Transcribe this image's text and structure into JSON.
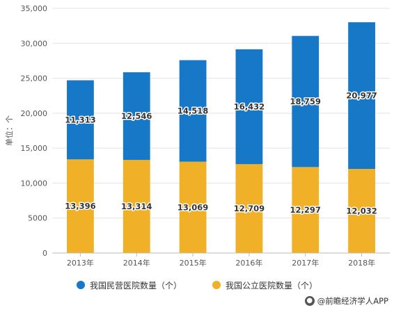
{
  "chart_data": {
    "type": "bar",
    "stacked": true,
    "categories": [
      "2013年",
      "2014年",
      "2015年",
      "2016年",
      "2017年",
      "2018年"
    ],
    "series": [
      {
        "name": "我国公立医院数量（个）",
        "values": [
          13396,
          13314,
          13069,
          12709,
          12297,
          12032
        ],
        "labels": [
          "13,396",
          "13,314",
          "13,069",
          "12,709",
          "12,297",
          "12,032"
        ],
        "color": "#f0b027"
      },
      {
        "name": "我国民营医院数量（个）",
        "values": [
          11313,
          12546,
          14518,
          16432,
          18759,
          20977
        ],
        "labels": [
          "11,313",
          "12,546",
          "14,518",
          "16,432",
          "18,759",
          "20,977"
        ],
        "color": "#1878c8"
      }
    ],
    "ylabel": "单位：个",
    "ylim": [
      0,
      35000
    ],
    "yticks": [
      0,
      5000,
      10000,
      15000,
      20000,
      25000,
      30000,
      35000
    ],
    "ytick_labels": [
      "0",
      "5000",
      "10,000",
      "15,000",
      "20,000",
      "25,000",
      "30,000",
      "35,000"
    ],
    "grid": true,
    "legend_position": "bottom"
  },
  "legend": {
    "items": [
      {
        "label": "我国民营医院数量（个）",
        "color": "#1878c8"
      },
      {
        "label": "我国公立医院数量（个）",
        "color": "#f0b027"
      }
    ]
  },
  "source": {
    "icon": "qianzhan-logo-icon",
    "text": "@前瞻经济学人APP"
  }
}
